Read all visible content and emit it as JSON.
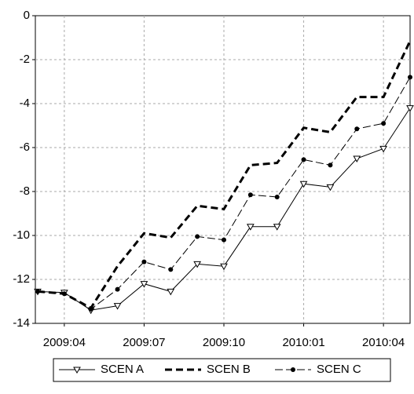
{
  "chart_data": {
    "type": "line",
    "categories": [
      null,
      "2009:04",
      null,
      null,
      "2009:07",
      null,
      null,
      "2009:10",
      null,
      null,
      "2010:01",
      null,
      null,
      "2010:04",
      null
    ],
    "series": [
      {
        "name": "SCEN A",
        "color": "#000000",
        "dash": "solid",
        "marker": "triangle-down",
        "width": 1,
        "values": [
          -12.55,
          -12.6,
          -13.4,
          -13.2,
          -12.2,
          -12.55,
          -11.3,
          -11.4,
          -9.6,
          -9.6,
          -7.65,
          -7.8,
          -6.5,
          -6.05,
          -4.2
        ]
      },
      {
        "name": "SCEN B",
        "color": "#000000",
        "dash": "dashed",
        "marker": "none",
        "width": 3,
        "values": [
          -12.55,
          -12.65,
          -13.3,
          -11.4,
          -9.9,
          -10.1,
          -8.65,
          -8.8,
          -6.8,
          -6.7,
          -5.1,
          -5.3,
          -3.7,
          -3.7,
          -1.15
        ]
      },
      {
        "name": "SCEN C",
        "color": "#000000",
        "dash": "long-dash",
        "marker": "circle",
        "width": 1,
        "values": [
          -12.55,
          -12.65,
          -13.35,
          -12.45,
          -11.2,
          -11.55,
          -10.05,
          -10.2,
          -8.15,
          -8.25,
          -6.55,
          -6.8,
          -5.15,
          -4.9,
          -2.8
        ]
      }
    ],
    "ylim": [
      -14,
      0
    ],
    "yticks": [
      0,
      -2,
      -4,
      -6,
      -8,
      -10,
      -12,
      -14
    ],
    "grid": true,
    "legend": "bottom"
  }
}
